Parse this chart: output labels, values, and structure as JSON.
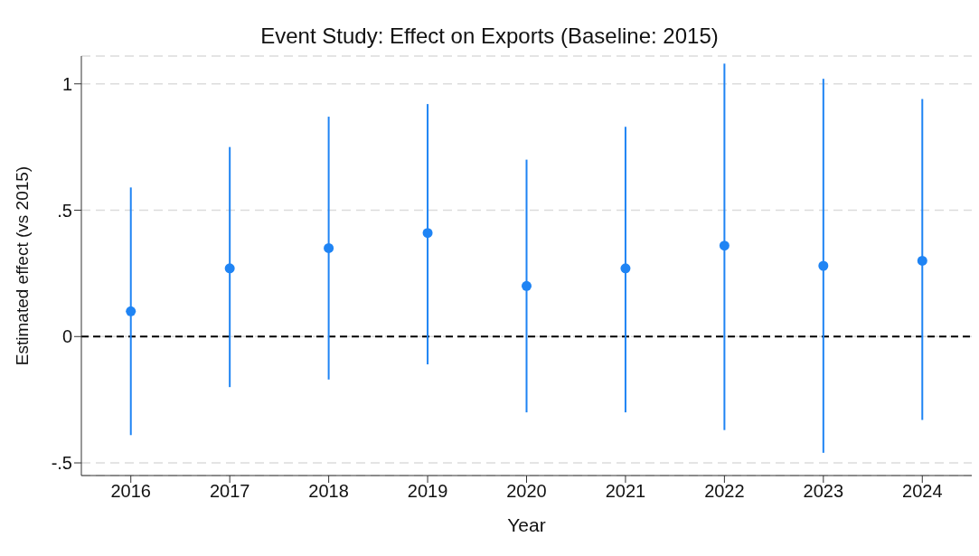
{
  "chart_data": {
    "type": "scatter",
    "title": "Event Study: Effect on Exports (Baseline: 2015)",
    "xlabel": "Year",
    "ylabel": "Estimated effect  (vs 2015)",
    "categories": [
      "2016",
      "2017",
      "2018",
      "2019",
      "2020",
      "2021",
      "2022",
      "2023",
      "2024"
    ],
    "series": [
      {
        "color": "#1f84f4",
        "values": [
          0.1,
          0.27,
          0.35,
          0.41,
          0.2,
          0.27,
          0.36,
          0.28,
          0.3
        ],
        "errors": [
          [
            -0.39,
            0.59
          ],
          [
            -0.2,
            0.75
          ],
          [
            -0.17,
            0.87
          ],
          [
            -0.11,
            0.92
          ],
          [
            -0.3,
            0.7
          ],
          [
            -0.3,
            0.83
          ],
          [
            -0.37,
            1.08
          ],
          [
            -0.46,
            1.02
          ],
          [
            -0.33,
            0.94
          ]
        ]
      }
    ],
    "ylim": [
      -0.55,
      1.11
    ],
    "yticks": [
      1,
      {
        "value": 0.5,
        "label": ".5"
      },
      0,
      {
        "value": -0.5,
        "label": "-.5"
      }
    ],
    "grid": "y",
    "marker": "circle",
    "legend": false,
    "ref_lines": [
      {
        "axis": "y",
        "value": 0,
        "color": "#000000",
        "line_style": "dashed"
      }
    ]
  }
}
